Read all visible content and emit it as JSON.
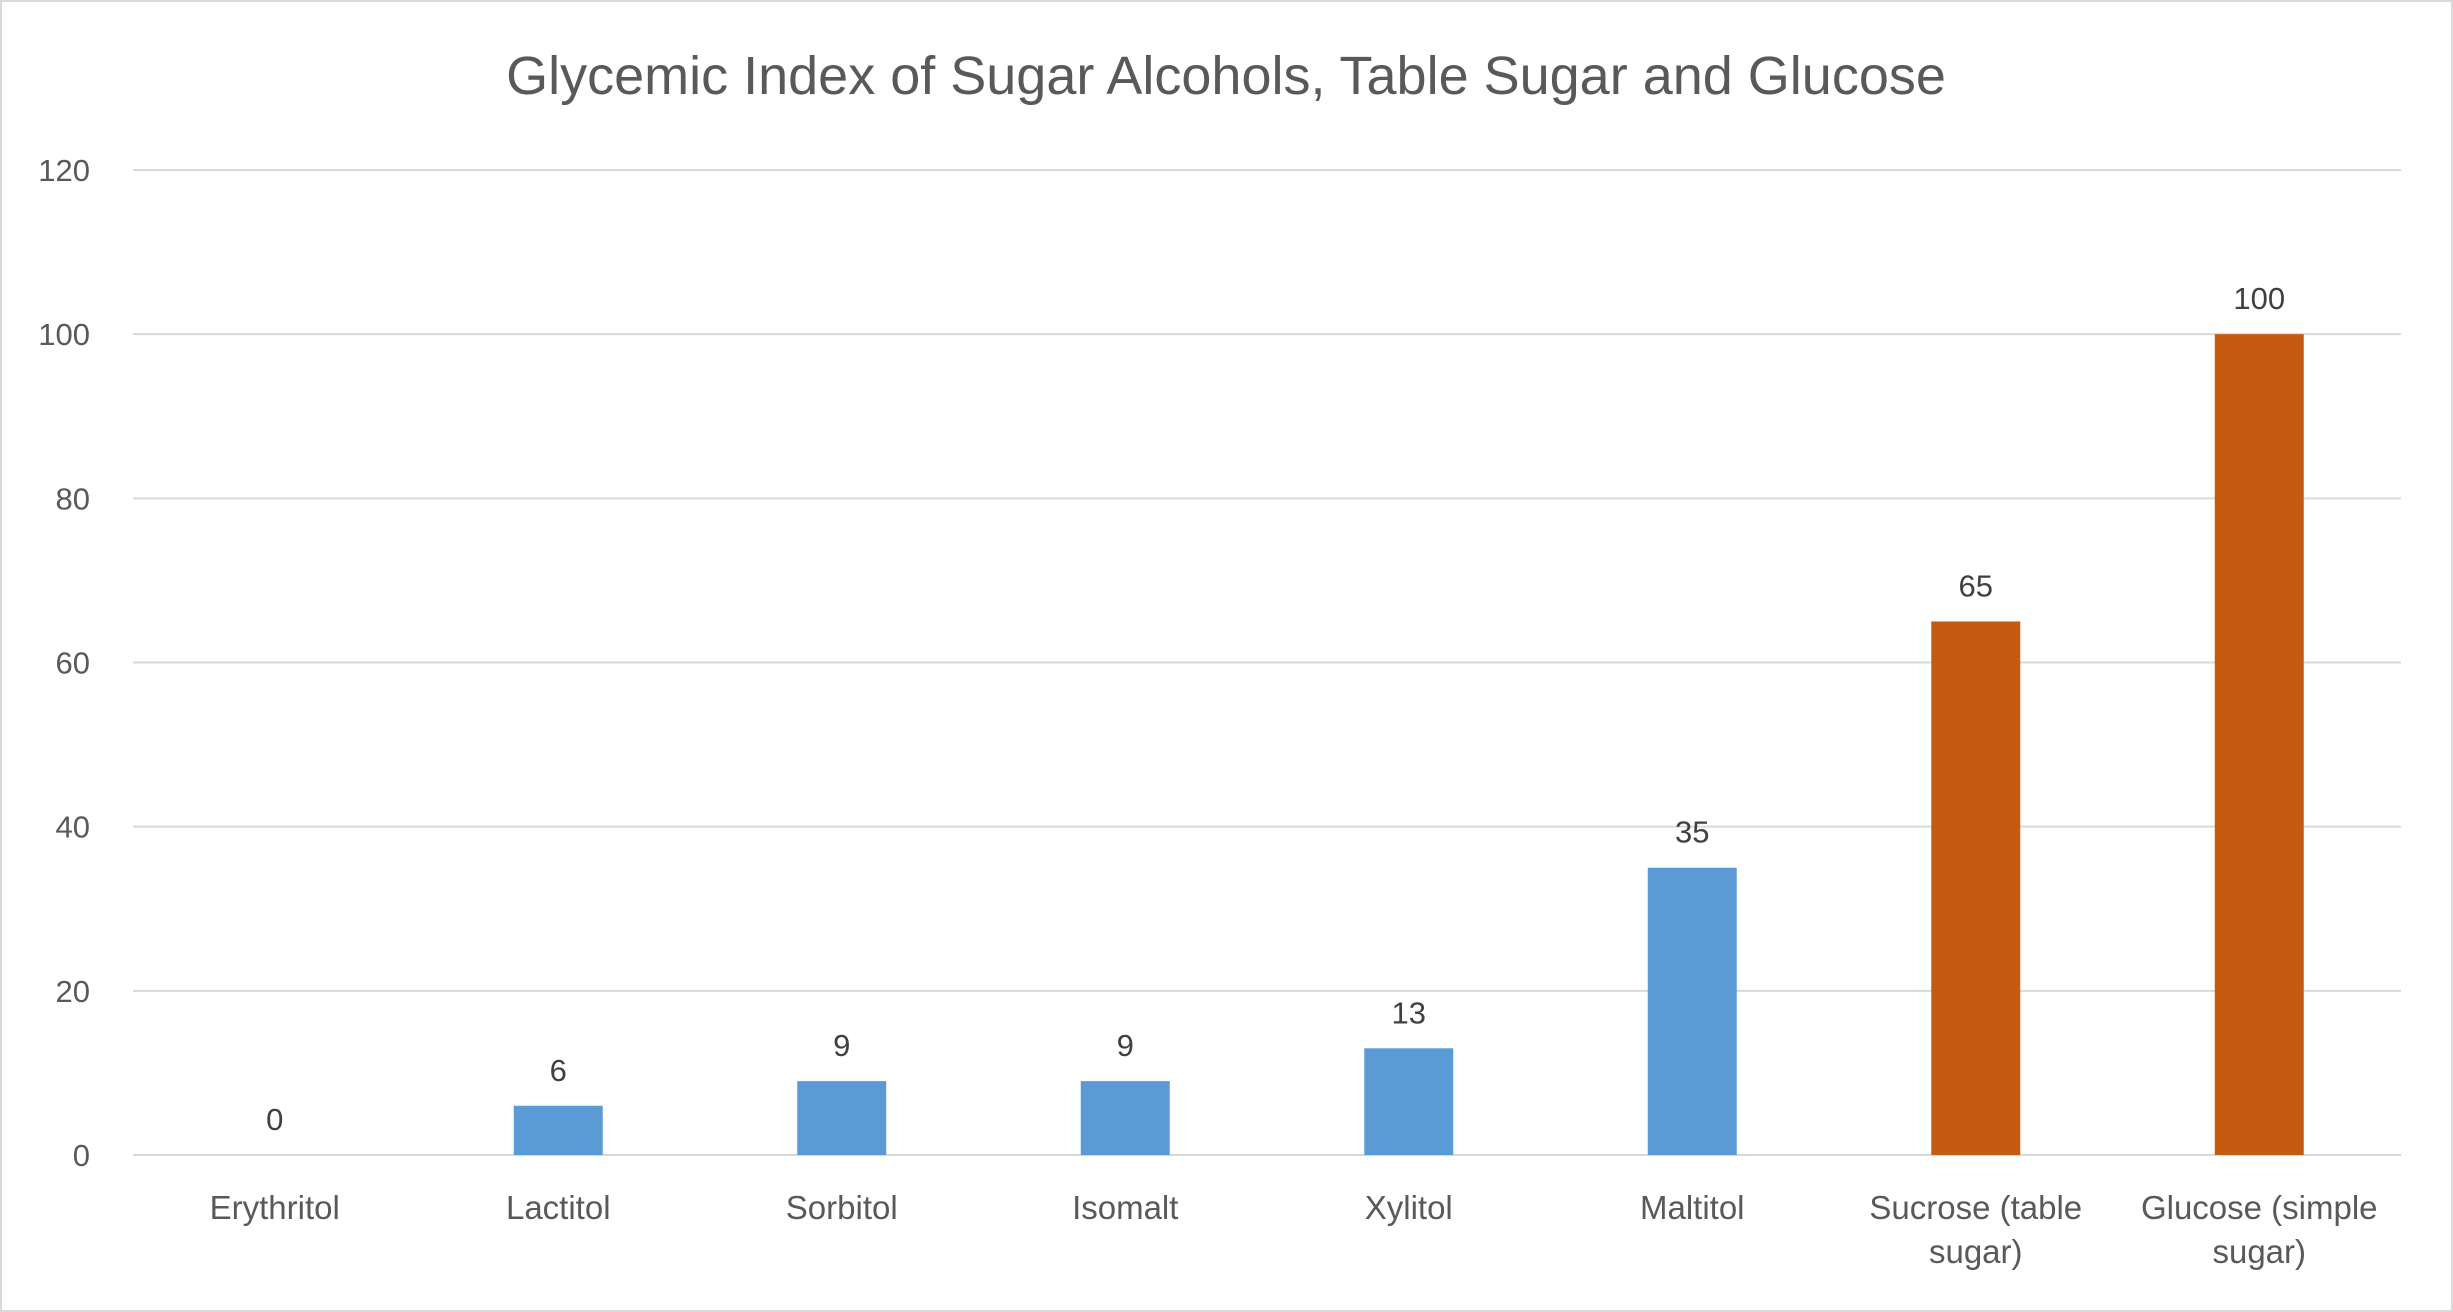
{
  "chart_data": {
    "type": "bar",
    "title": "Glycemic Index of Sugar Alcohols, Table Sugar and Glucose",
    "xlabel": "",
    "ylabel": "",
    "ylim": [
      0,
      120
    ],
    "yticks": [
      0,
      20,
      40,
      60,
      80,
      100,
      120
    ],
    "grid": true,
    "legend": "none",
    "categories": [
      "Erythritol",
      "Lactitol",
      "Sorbitol",
      "Isomalt",
      "Xylitol",
      "Maltitol",
      "Sucrose (table sugar)",
      "Glucose (simple sugar)"
    ],
    "category_lines": [
      [
        "Erythritol"
      ],
      [
        "Lactitol"
      ],
      [
        "Sorbitol"
      ],
      [
        "Isomalt"
      ],
      [
        "Xylitol"
      ],
      [
        "Maltitol"
      ],
      [
        "Sucrose (table",
        "sugar)"
      ],
      [
        "Glucose (simple",
        "sugar)"
      ]
    ],
    "values": [
      0,
      6,
      9,
      9,
      13,
      35,
      65,
      100
    ],
    "bar_groups": [
      "sugar-alcohol",
      "sugar-alcohol",
      "sugar-alcohol",
      "sugar-alcohol",
      "sugar-alcohol",
      "sugar-alcohol",
      "sugar",
      "sugar"
    ],
    "colors": {
      "sugar-alcohol": "#5B9BD5",
      "sugar": "#C55A11",
      "grid": "#D9D9D9",
      "text": "#595959"
    }
  }
}
